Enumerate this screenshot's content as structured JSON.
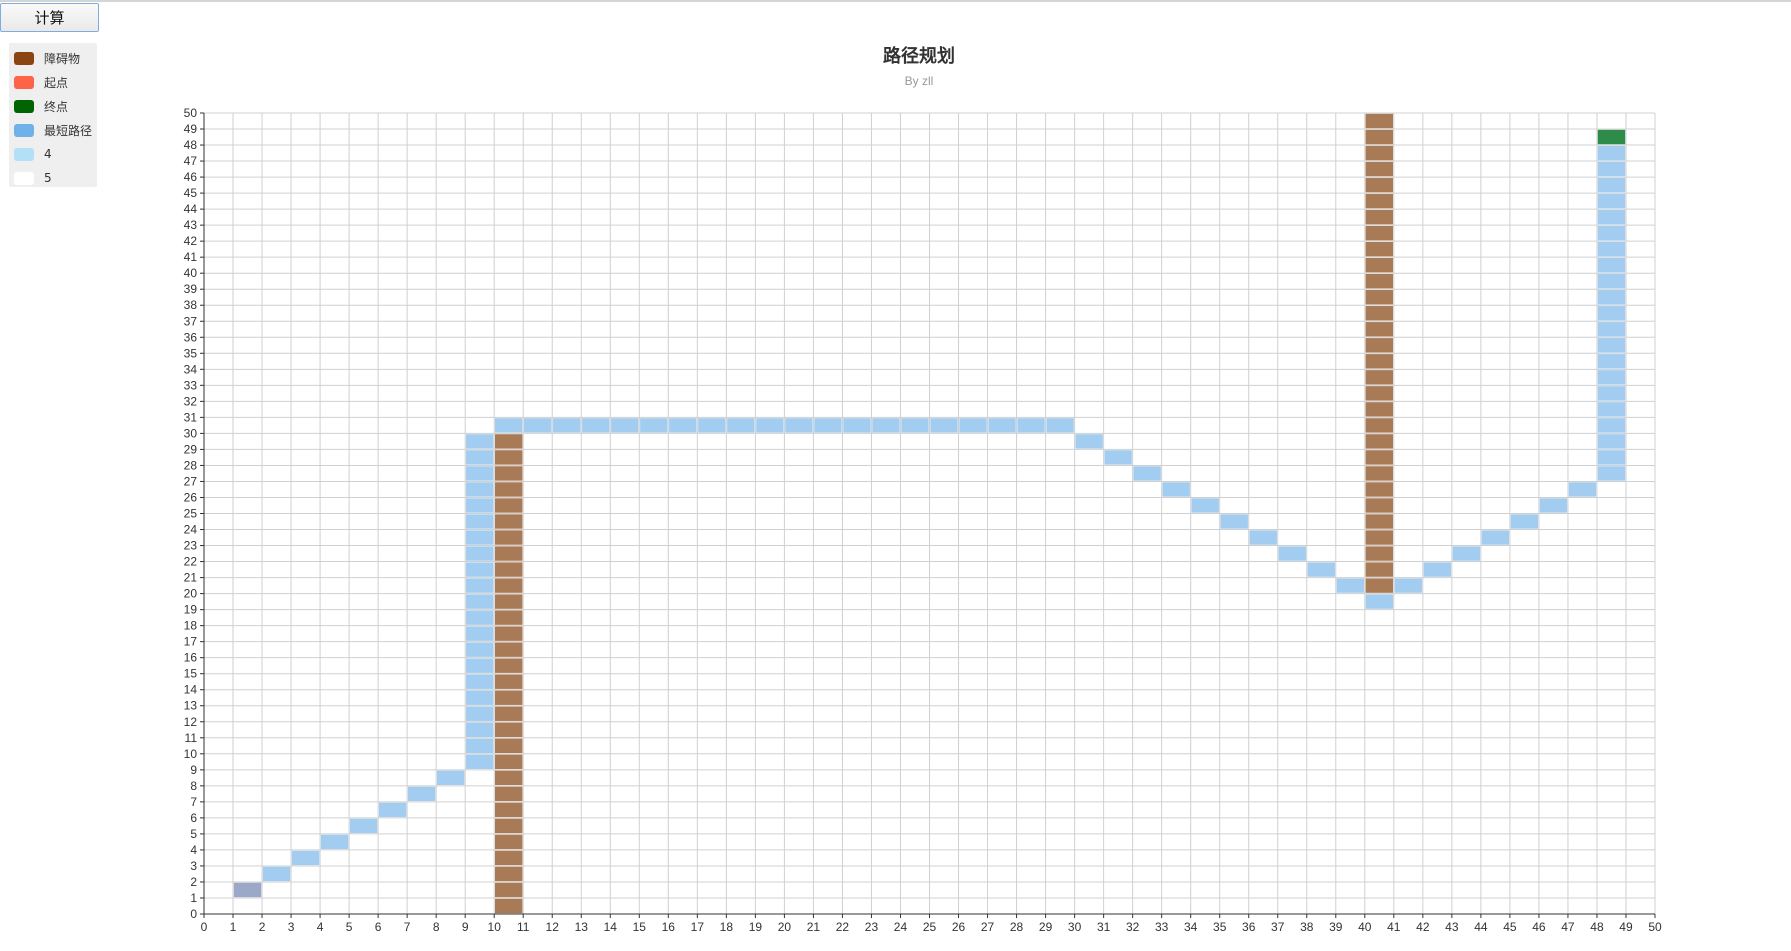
{
  "toolbar": {
    "calc_label": "计算"
  },
  "colors": {
    "obstacle": "#a97a56",
    "start": "#9ba8c8",
    "end": "#2e8b4a",
    "path": "#a3cdf0",
    "grid": "#d0d0d0",
    "axis": "#333333"
  },
  "legend": [
    {
      "label": "障碍物",
      "color": "#8b4513"
    },
    {
      "label": "起点",
      "color": "#ff6347"
    },
    {
      "label": "终点",
      "color": "#006400"
    },
    {
      "label": "最短路径",
      "color": "#6fb2ea"
    },
    {
      "label": "4",
      "color": "#b3e0f7"
    },
    {
      "label": "5",
      "color": "#ffffff"
    }
  ],
  "chart_data": {
    "type": "heatmap",
    "title": "路径规划",
    "subtitle": "By zll",
    "xlim": [
      0,
      50
    ],
    "ylim": [
      0,
      50
    ],
    "x_ticks": [
      0,
      1,
      2,
      3,
      4,
      5,
      6,
      7,
      8,
      9,
      10,
      11,
      12,
      13,
      14,
      15,
      16,
      17,
      18,
      19,
      20,
      21,
      22,
      23,
      24,
      25,
      26,
      27,
      28,
      29,
      30,
      31,
      32,
      33,
      34,
      35,
      36,
      37,
      38,
      39,
      40,
      41,
      42,
      43,
      44,
      45,
      46,
      47,
      48,
      49,
      50
    ],
    "y_ticks": [
      0,
      1,
      2,
      3,
      4,
      5,
      6,
      7,
      8,
      9,
      10,
      11,
      12,
      13,
      14,
      15,
      16,
      17,
      18,
      19,
      20,
      21,
      22,
      23,
      24,
      25,
      26,
      27,
      28,
      29,
      30,
      31,
      32,
      33,
      34,
      35,
      36,
      37,
      38,
      39,
      40,
      41,
      42,
      43,
      44,
      45,
      46,
      47,
      48,
      49,
      50
    ],
    "grid": true,
    "obstacles": [
      {
        "x": 10,
        "y_from": 0,
        "y_to": 29
      },
      {
        "x": 40,
        "y_from": 20,
        "y_to": 49
      }
    ],
    "start": [
      1,
      1
    ],
    "end": [
      48,
      48
    ],
    "path": [
      [
        2,
        2
      ],
      [
        3,
        3
      ],
      [
        4,
        4
      ],
      [
        5,
        5
      ],
      [
        6,
        6
      ],
      [
        7,
        7
      ],
      [
        8,
        8
      ],
      [
        9,
        9
      ],
      [
        9,
        10
      ],
      [
        9,
        11
      ],
      [
        9,
        12
      ],
      [
        9,
        13
      ],
      [
        9,
        14
      ],
      [
        9,
        15
      ],
      [
        9,
        16
      ],
      [
        9,
        17
      ],
      [
        9,
        18
      ],
      [
        9,
        19
      ],
      [
        9,
        20
      ],
      [
        9,
        21
      ],
      [
        9,
        22
      ],
      [
        9,
        23
      ],
      [
        9,
        24
      ],
      [
        9,
        25
      ],
      [
        9,
        26
      ],
      [
        9,
        27
      ],
      [
        9,
        28
      ],
      [
        9,
        29
      ],
      [
        10,
        30
      ],
      [
        11,
        30
      ],
      [
        12,
        30
      ],
      [
        13,
        30
      ],
      [
        14,
        30
      ],
      [
        15,
        30
      ],
      [
        16,
        30
      ],
      [
        17,
        30
      ],
      [
        18,
        30
      ],
      [
        19,
        30
      ],
      [
        20,
        30
      ],
      [
        21,
        30
      ],
      [
        22,
        30
      ],
      [
        23,
        30
      ],
      [
        24,
        30
      ],
      [
        25,
        30
      ],
      [
        26,
        30
      ],
      [
        27,
        30
      ],
      [
        28,
        30
      ],
      [
        29,
        30
      ],
      [
        30,
        29
      ],
      [
        31,
        28
      ],
      [
        32,
        27
      ],
      [
        33,
        26
      ],
      [
        34,
        25
      ],
      [
        35,
        24
      ],
      [
        36,
        23
      ],
      [
        37,
        22
      ],
      [
        38,
        21
      ],
      [
        39,
        20
      ],
      [
        40,
        19
      ],
      [
        41,
        20
      ],
      [
        42,
        21
      ],
      [
        43,
        22
      ],
      [
        44,
        23
      ],
      [
        45,
        24
      ],
      [
        46,
        25
      ],
      [
        47,
        26
      ],
      [
        48,
        27
      ],
      [
        48,
        28
      ],
      [
        48,
        29
      ],
      [
        48,
        30
      ],
      [
        48,
        31
      ],
      [
        48,
        32
      ],
      [
        48,
        33
      ],
      [
        48,
        34
      ],
      [
        48,
        35
      ],
      [
        48,
        36
      ],
      [
        48,
        37
      ],
      [
        48,
        38
      ],
      [
        48,
        39
      ],
      [
        48,
        40
      ],
      [
        48,
        41
      ],
      [
        48,
        42
      ],
      [
        48,
        43
      ],
      [
        48,
        44
      ],
      [
        48,
        45
      ],
      [
        48,
        46
      ],
      [
        48,
        47
      ]
    ]
  }
}
